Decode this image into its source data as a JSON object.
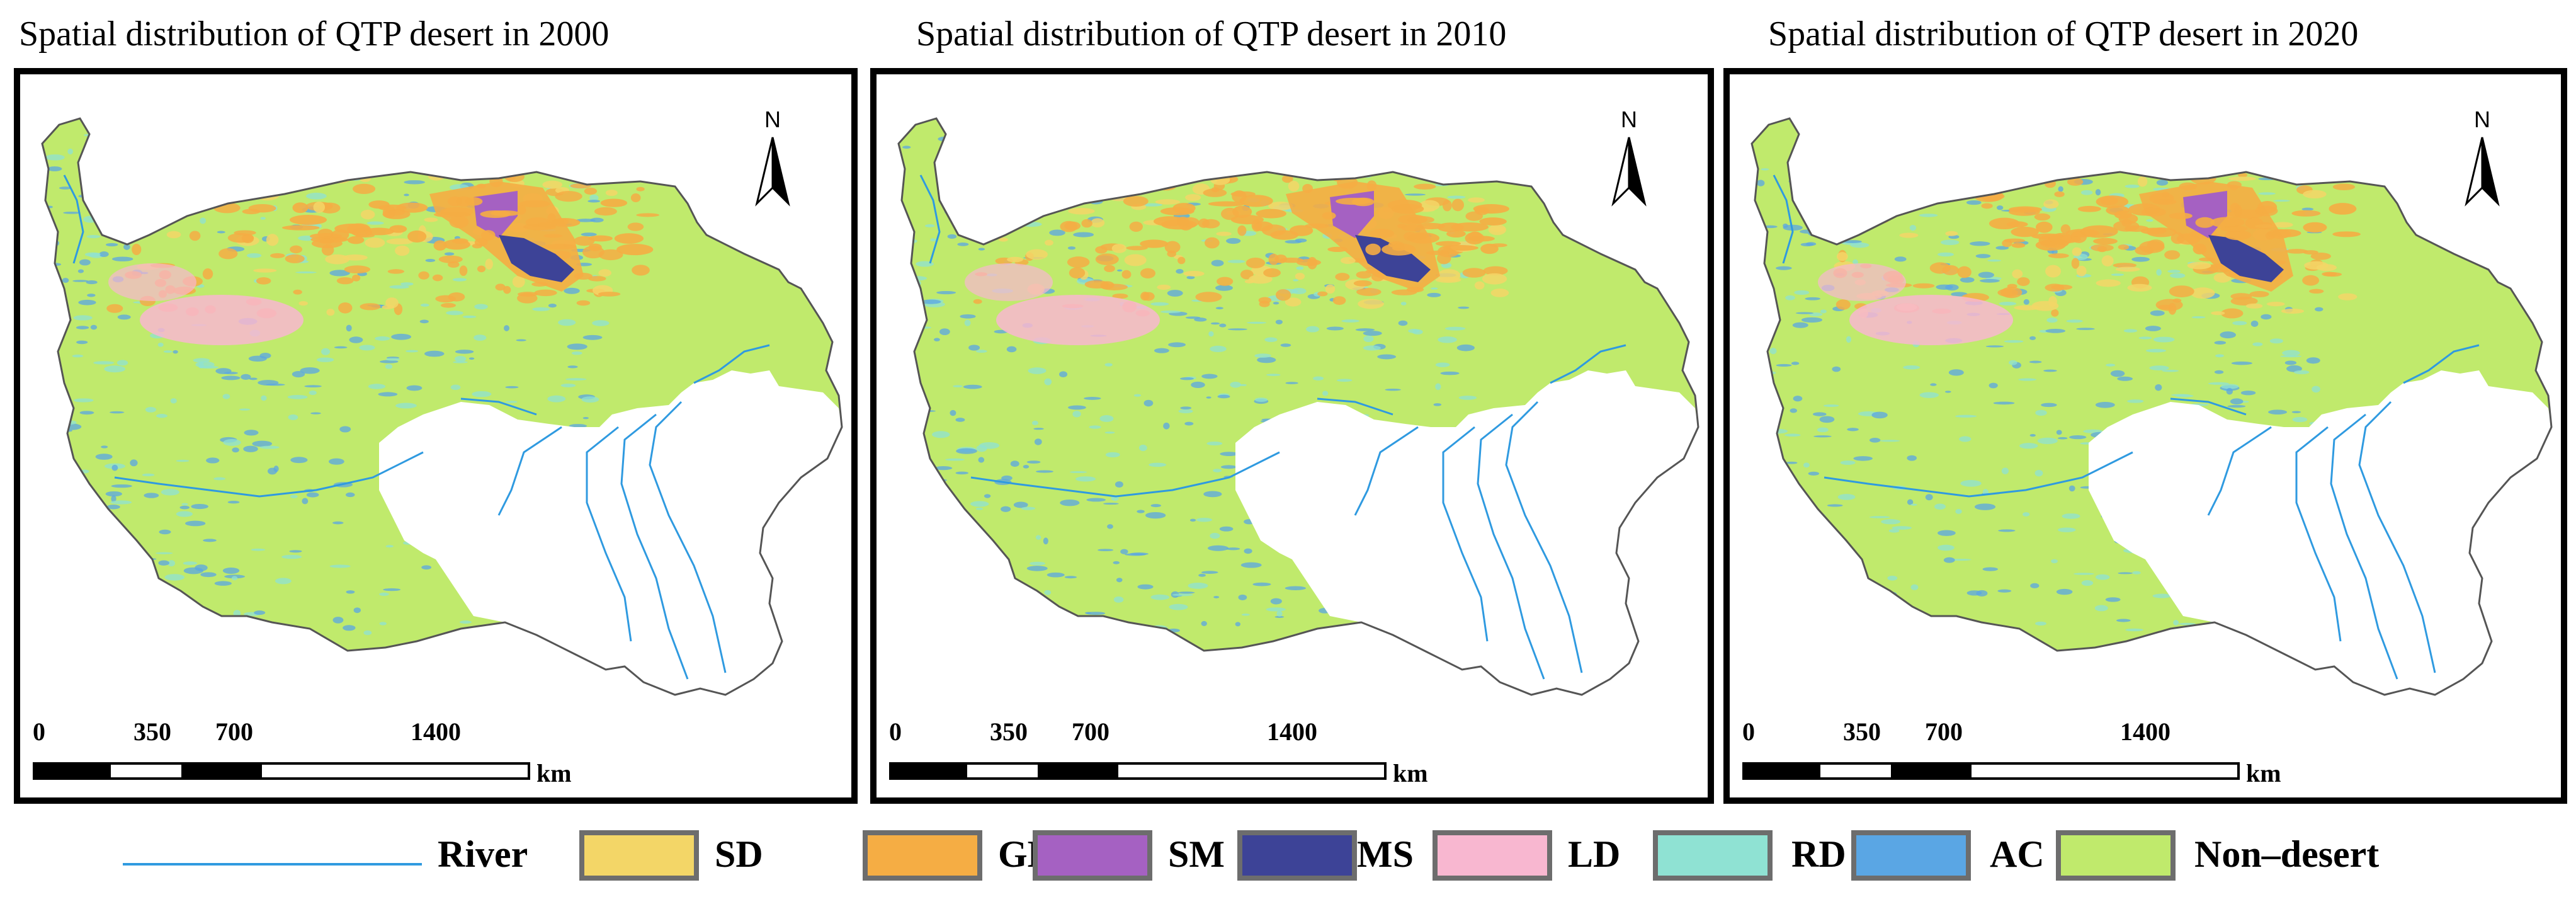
{
  "panels": [
    {
      "title": "Spatial distribution of QTP desert in 2000"
    },
    {
      "title": "Spatial distribution of QTP desert in 2010"
    },
    {
      "title": "Spatial distribution of QTP desert in 2020"
    }
  ],
  "north_arrow": {
    "letter": "N"
  },
  "scale_bar": {
    "ticks": [
      "0",
      "350",
      "700",
      "1400"
    ],
    "unit": "km"
  },
  "legend": {
    "items": [
      {
        "label": "River",
        "color": "#2f9ae0",
        "kind": "line"
      },
      {
        "label": "SD",
        "color": "#f3d667",
        "kind": "patch"
      },
      {
        "label": "GD",
        "color": "#f5ad44",
        "kind": "patch"
      },
      {
        "label": "SM",
        "color": "#a561c2",
        "kind": "patch"
      },
      {
        "label": "MS",
        "color": "#3d4397",
        "kind": "patch"
      },
      {
        "label": "LD",
        "color": "#f8b7d0",
        "kind": "patch"
      },
      {
        "label": "RD",
        "color": "#8fe2d3",
        "kind": "patch"
      },
      {
        "label": "AC",
        "color": "#5aa6e4",
        "kind": "patch"
      },
      {
        "label": "Non–desert",
        "color": "#c0ea6c",
        "kind": "patch"
      }
    ]
  }
}
